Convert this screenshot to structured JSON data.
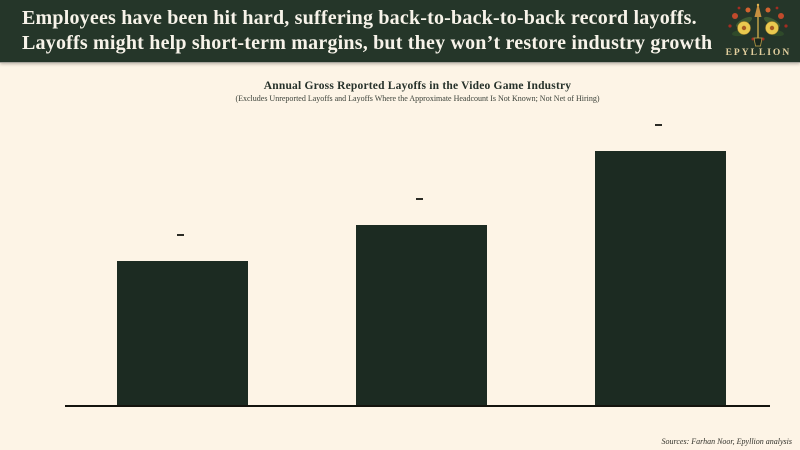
{
  "header": {
    "line1": "Employees have been hit hard, suffering back-to-back-to-back record layoffs.",
    "line2": "Layoffs might help short-term margins, but they won’t restore industry growth",
    "bg_color": "#253629",
    "text_color": "#f7f3e9"
  },
  "logo": {
    "name": "Epyllion floral emblem",
    "wordmark": "EPYLLION",
    "wordmark_color": "#e2cf9e"
  },
  "chart_data": {
    "type": "bar",
    "title": "Annual Gross Reported Layoffs in the Video Game Industry",
    "subtitle": "(Excludes Unreported Layoffs and Layoffs Where the Approximate Headcount Is Not Known; Not Net of Hiring)",
    "categories": [
      "",
      "",
      ""
    ],
    "values_relative": [
      0.57,
      0.71,
      1.0
    ],
    "value_note": "no numeric axis or tick labels visible; bar heights estimated relative to tallest bar",
    "data_label_marks": [
      "-",
      "-",
      "-"
    ],
    "xlabel": "",
    "ylabel": "",
    "gridlines": false,
    "axis_line": true,
    "legend": false,
    "bar_color": "#1c2b22",
    "background_color": "#fdf4e6"
  },
  "footer": {
    "sources": "Sources: Farhan Noor, Epyllion analysis"
  }
}
